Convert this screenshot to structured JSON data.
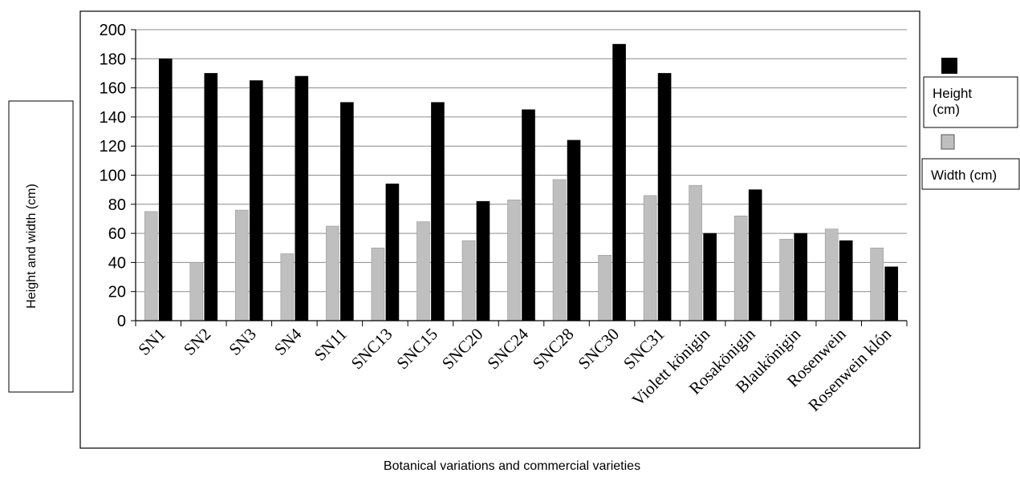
{
  "chart_data": {
    "type": "bar",
    "title": "",
    "xlabel": "Botanical variations and commercial varieties",
    "ylabel": "Height and width (cm)",
    "ylim": [
      0,
      200
    ],
    "yticks": [
      0,
      20,
      40,
      60,
      80,
      100,
      120,
      140,
      160,
      180,
      200
    ],
    "grid": true,
    "legend_placement": "right",
    "categories": [
      "SN1",
      "SN2",
      "SN3",
      "SN4",
      "SN11",
      "SNC13",
      "SNC15",
      "SNC20",
      "SNC24",
      "SNC28",
      "SNC30",
      "SNC31",
      "Violett königin",
      "Rosakönigin",
      "Blaukönigin",
      "Rosenwein",
      "Rosenwein klón"
    ],
    "series": [
      {
        "name": "Width (cm)",
        "color": "#bfbfbf",
        "values": [
          75,
          40,
          76,
          46,
          65,
          50,
          68,
          55,
          83,
          97,
          45,
          86,
          93,
          72,
          56,
          63,
          50
        ]
      },
      {
        "name": "Height (cm)",
        "color": "#000000",
        "values": [
          180,
          170,
          165,
          168,
          150,
          94,
          150,
          82,
          145,
          124,
          190,
          170,
          60,
          90,
          60,
          55,
          37
        ]
      }
    ],
    "legend": [
      {
        "label": "Height (cm)",
        "color": "#000000"
      },
      {
        "label": "Width (cm)",
        "color": "#bfbfbf"
      }
    ]
  }
}
